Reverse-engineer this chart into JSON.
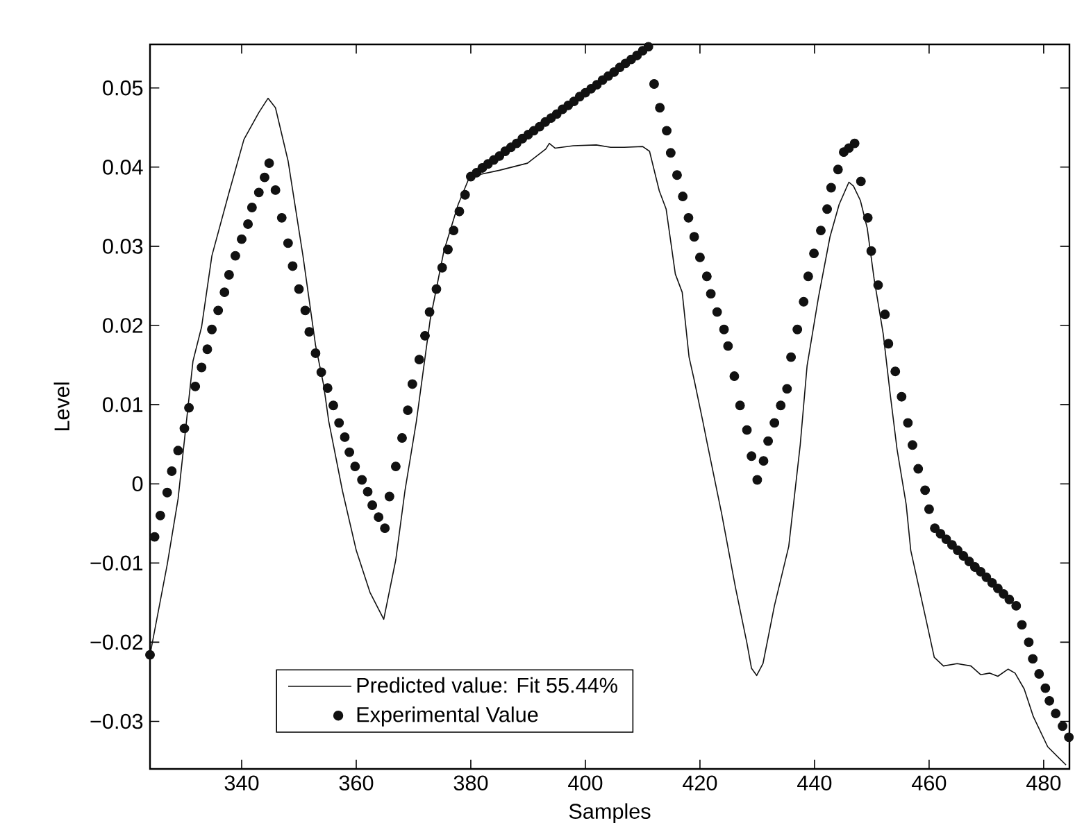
{
  "chart_data": {
    "type": "line",
    "xlabel": "Samples",
    "ylabel": "Level",
    "xlim": [
      324,
      484.5
    ],
    "ylim": [
      -0.036,
      0.0555
    ],
    "xticks": [
      340,
      360,
      380,
      400,
      420,
      440,
      460,
      480
    ],
    "yticks": [
      {
        "value": -0.03,
        "label": "−0.03"
      },
      {
        "value": -0.02,
        "label": "−0.02"
      },
      {
        "value": -0.01,
        "label": "−0.01"
      },
      0,
      0.01,
      0.02,
      0.03,
      0.04,
      0.05
    ],
    "legend": "bottom",
    "grid": false,
    "series": [
      {
        "name": "Predicted value: Fit 55.44%",
        "type": "line",
        "color": "#111111",
        "marker": "none",
        "line_style": "solid",
        "x": [
          324,
          327,
          328.9,
          331.5,
          333,
          334.8,
          337.8,
          340.4,
          343,
          344.6,
          345.9,
          348.1,
          350.7,
          352.9,
          354.3,
          355.2,
          357.6,
          360,
          362.4,
          364.8,
          366.9,
          368.5,
          370.5,
          372.9,
          375.3,
          377.8,
          379.8,
          385,
          389.9,
          393.1,
          393.7,
          394.7,
          397.9,
          401.9,
          404.4,
          406.8,
          410,
          411.2,
          412.9,
          414.1,
          415.7,
          416.9,
          418.1,
          419,
          420.5,
          421.3,
          423.8,
          426.2,
          428.2,
          429,
          429.9,
          431,
          433,
          435.5,
          437.5,
          438.7,
          440.7,
          442.7,
          444.3,
          446,
          446.8,
          448,
          449.2,
          450.4,
          452,
          453.2,
          454.4,
          456,
          456.8,
          459.3,
          460.9,
          462.5,
          464.9,
          467.3,
          469,
          470.6,
          472,
          473.8,
          475,
          476.6,
          478.2,
          480.7,
          483.9
        ],
        "values": [
          -0.0216,
          -0.0102,
          -0.0019,
          0.0155,
          0.0198,
          0.0288,
          0.0368,
          0.0435,
          0.0469,
          0.0487,
          0.0475,
          0.0408,
          0.0288,
          0.0175,
          0.0125,
          0.0079,
          -0.0009,
          -0.0084,
          -0.0137,
          -0.0171,
          -0.0096,
          -0.0009,
          0.0079,
          0.0207,
          0.0294,
          0.0353,
          0.0388,
          0.0396,
          0.0405,
          0.0423,
          0.043,
          0.0424,
          0.0427,
          0.0428,
          0.0425,
          0.0425,
          0.0426,
          0.042,
          0.037,
          0.0347,
          0.0265,
          0.0242,
          0.016,
          0.0131,
          0.0079,
          0.005,
          -0.0038,
          -0.0131,
          -0.0201,
          -0.0233,
          -0.0242,
          -0.0227,
          -0.0154,
          -0.0079,
          0.0049,
          0.0149,
          0.0236,
          0.0312,
          0.0353,
          0.0381,
          0.0376,
          0.0358,
          0.0323,
          0.0259,
          0.0189,
          0.0114,
          0.0044,
          -0.0026,
          -0.0084,
          -0.0166,
          -0.0219,
          -0.023,
          -0.0227,
          -0.023,
          -0.0241,
          -0.0239,
          -0.0243,
          -0.0234,
          -0.0239,
          -0.0259,
          -0.0294,
          -0.0332,
          -0.0355
        ]
      },
      {
        "name": "Experimental Value",
        "type": "scatter",
        "color": "#111111",
        "marker": "circle",
        "x": [
          324,
          324.8,
          325.8,
          327,
          327.8,
          328.9,
          330,
          330.8,
          331.9,
          333,
          334,
          334.8,
          335.9,
          337,
          337.8,
          338.9,
          340,
          341.1,
          341.8,
          343,
          344,
          344.8,
          345.9,
          347,
          348.1,
          348.9,
          350,
          351.1,
          351.8,
          352.9,
          353.9,
          355,
          356,
          357,
          358,
          358.8,
          359.8,
          361,
          362,
          362.8,
          363.9,
          365,
          365.8,
          366.9,
          368,
          369,
          369.8,
          371,
          372,
          372.8,
          374,
          375,
          376,
          377,
          378,
          379,
          380,
          381,
          382,
          383,
          384,
          385,
          386,
          387,
          388,
          389,
          390,
          391,
          392,
          393,
          394,
          395,
          396,
          397,
          398,
          399,
          400,
          401,
          402,
          403,
          404,
          405,
          406,
          407,
          408,
          409,
          410,
          411,
          412,
          413,
          414.2,
          414.9,
          416,
          417,
          418,
          419,
          420,
          421.2,
          421.9,
          423,
          424.2,
          424.9,
          426,
          427,
          428.2,
          429,
          430,
          431.1,
          431.9,
          433,
          434.1,
          435.2,
          435.9,
          437,
          438.1,
          438.9,
          439.9,
          441.1,
          442.2,
          442.9,
          444.1,
          445.1,
          446,
          447,
          448.1,
          449.3,
          449.9,
          451.1,
          452.3,
          452.9,
          454.1,
          455.2,
          456.3,
          457.1,
          458.1,
          459.3,
          460,
          461,
          462,
          463,
          464,
          465,
          466,
          467,
          468,
          469,
          470,
          471,
          472,
          473,
          474,
          475.2,
          476.2,
          477.4,
          478.1,
          479.2,
          480.3,
          481,
          482.1,
          483.3,
          484.4
        ],
        "values": [
          -0.0216,
          -0.0067,
          -0.004,
          -0.0011,
          0.0016,
          0.0042,
          0.007,
          0.0096,
          0.0123,
          0.0147,
          0.017,
          0.0195,
          0.0219,
          0.0242,
          0.0264,
          0.0288,
          0.0309,
          0.0328,
          0.0349,
          0.0368,
          0.0387,
          0.0405,
          0.0371,
          0.0336,
          0.0304,
          0.0275,
          0.0246,
          0.0219,
          0.0192,
          0.0165,
          0.0141,
          0.0121,
          0.0099,
          0.0077,
          0.0059,
          0.004,
          0.0022,
          0.0005,
          -0.001,
          -0.0027,
          -0.0042,
          -0.0056,
          -0.0016,
          0.0022,
          0.0058,
          0.0093,
          0.0126,
          0.0157,
          0.0187,
          0.0217,
          0.0246,
          0.0273,
          0.0296,
          0.032,
          0.0344,
          0.0365,
          0.0388,
          0.0393,
          0.0399,
          0.0404,
          0.0409,
          0.0414,
          0.042,
          0.0425,
          0.043,
          0.0436,
          0.0441,
          0.0446,
          0.0451,
          0.0457,
          0.0462,
          0.0467,
          0.0473,
          0.0478,
          0.0483,
          0.0489,
          0.0494,
          0.0499,
          0.0504,
          0.051,
          0.0515,
          0.052,
          0.0526,
          0.0531,
          0.0536,
          0.0541,
          0.0547,
          0.0552,
          0.0505,
          0.0475,
          0.0446,
          0.0418,
          0.039,
          0.0363,
          0.0336,
          0.0312,
          0.0286,
          0.0262,
          0.024,
          0.0217,
          0.0195,
          0.0174,
          0.0136,
          0.0099,
          0.0068,
          0.0035,
          0.0005,
          0.0029,
          0.0054,
          0.0077,
          0.0099,
          0.012,
          0.016,
          0.0195,
          0.023,
          0.0262,
          0.0291,
          0.032,
          0.0347,
          0.0374,
          0.0397,
          0.0419,
          0.0424,
          0.043,
          0.0382,
          0.0336,
          0.0294,
          0.0251,
          0.0214,
          0.0177,
          0.0142,
          0.011,
          0.0077,
          0.0049,
          0.0019,
          -0.0008,
          -0.0032,
          -0.0056,
          -0.0063,
          -0.007,
          -0.0077,
          -0.0084,
          -0.0091,
          -0.0098,
          -0.0105,
          -0.0111,
          -0.0118,
          -0.0125,
          -0.0132,
          -0.0139,
          -0.0146,
          -0.0154,
          -0.0178,
          -0.02,
          -0.0221,
          -0.024,
          -0.0258,
          -0.0274,
          -0.029,
          -0.0306,
          -0.032
        ]
      }
    ]
  }
}
